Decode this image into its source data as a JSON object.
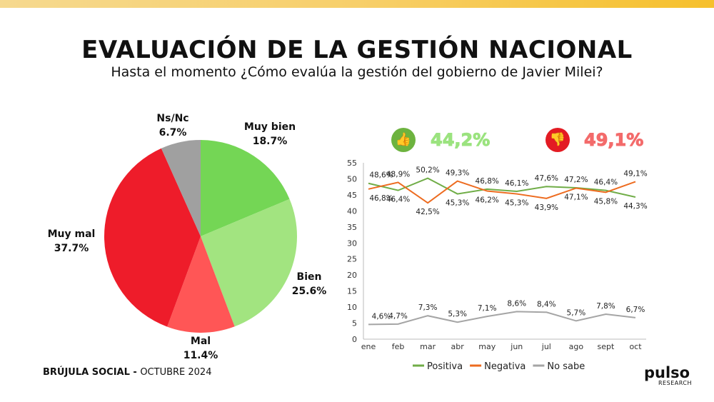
{
  "header": {
    "title": "EVALUACIÓN DE LA GESTIÓN NACIONAL",
    "subtitle": "Hasta el momento ¿Cómo evalúa la gestión del gobierno de Javier Milei?"
  },
  "highlights": {
    "positive": {
      "icon": "thumbs-up-icon",
      "value": "44,2%",
      "color": "#6fcf4f"
    },
    "negative": {
      "icon": "thumbs-down-icon",
      "value": "49,1%",
      "color": "#ef4b4b"
    }
  },
  "footer": {
    "brand": "BRÚJULA SOCIAL - ",
    "date": "OCTUBRE 2024"
  },
  "logo": {
    "name": "pulso",
    "sub": "RESEARCH"
  },
  "chart_data": [
    {
      "type": "pie",
      "slices": [
        {
          "label": "Muy bien",
          "value": 18.7,
          "display": "18.7%",
          "color": "#74d655"
        },
        {
          "label": "Bien",
          "value": 25.6,
          "display": "25.6%",
          "color": "#a2e480"
        },
        {
          "label": "Mal",
          "value": 11.4,
          "display": "11.4%",
          "color": "#ff5656"
        },
        {
          "label": "Muy mal",
          "value": 37.7,
          "display": "37.7%",
          "color": "#ee1c2a"
        },
        {
          "label": "Ns/Nc",
          "value": 6.7,
          "display": "6.7%",
          "color": "#a0a0a0"
        }
      ]
    },
    {
      "type": "line",
      "categories": [
        "ene",
        "feb",
        "mar",
        "abr",
        "may",
        "jun",
        "jul",
        "ago",
        "sept",
        "oct"
      ],
      "ylim": [
        0,
        55
      ],
      "yticks": [
        0,
        5,
        10,
        15,
        20,
        25,
        30,
        35,
        40,
        45,
        50,
        55
      ],
      "legend": "bottom",
      "series": [
        {
          "name": "Positiva",
          "color": "#70ad47",
          "values": [
            48.6,
            46.4,
            50.2,
            45.3,
            46.8,
            46.1,
            47.6,
            47.2,
            46.4,
            44.3
          ],
          "labels": [
            "48,6%",
            "46,4%",
            "50,2%",
            "45,3%",
            "46,8%",
            "46,1%",
            "47,6%",
            "47,2%",
            "46,4%",
            "44,3%"
          ]
        },
        {
          "name": "Negativa",
          "color": "#ed6b1f",
          "values": [
            46.8,
            48.9,
            42.5,
            49.3,
            46.2,
            45.3,
            43.9,
            47.1,
            45.8,
            49.1
          ],
          "labels": [
            "46,8%",
            "48,9%",
            "42,5%",
            "49,3%",
            "46,2%",
            "45,3%",
            "43,9%",
            "47,1%",
            "45,8%",
            "49,1%"
          ]
        },
        {
          "name": "No sabe",
          "color": "#a5a5a5",
          "values": [
            4.6,
            4.7,
            7.3,
            5.3,
            7.1,
            8.6,
            8.4,
            5.7,
            7.8,
            6.7
          ],
          "labels": [
            "4,6%",
            "4,7%",
            "7,3%",
            "5,3%",
            "7,1%",
            "8,6%",
            "8,4%",
            "5,7%",
            "7,8%",
            "6,7%"
          ]
        }
      ]
    }
  ]
}
